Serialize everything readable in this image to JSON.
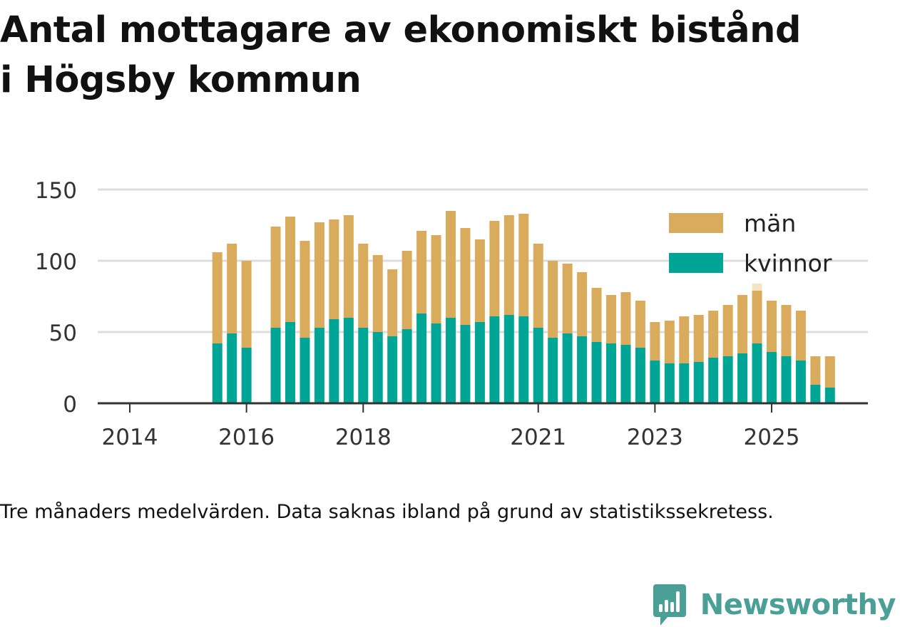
{
  "title_lines": [
    "Antal mottagare av ekonomiskt bistånd",
    "i Högsby kommun"
  ],
  "caption": "Tre månaders medelvärden. Data saknas ibland på grund av statistikssekretess.",
  "brand": "Newsworthy",
  "colors": {
    "men": "#d9ab5c",
    "women": "#00a595",
    "grid": "#dddddd",
    "axis": "#333333",
    "highlight": "#f3e5c4"
  },
  "chart_data": {
    "type": "bar",
    "stacked": true,
    "title": "Antal mottagare av ekonomiskt bistånd i Högsby kommun",
    "ylim": [
      0,
      150
    ],
    "yticks": [
      0,
      50,
      100,
      150
    ],
    "xlim": [
      2013.45,
      2026.65
    ],
    "xticks": [
      2014,
      2016,
      2018,
      2021,
      2023,
      2025
    ],
    "legend": {
      "position": "top-right",
      "entries": [
        "män",
        "kvinnor"
      ]
    },
    "x": [
      2015.5,
      2015.75,
      2016.0,
      2016.5,
      2016.75,
      2017.0,
      2017.25,
      2017.5,
      2017.75,
      2018.0,
      2018.25,
      2018.5,
      2018.75,
      2019.0,
      2019.25,
      2019.5,
      2019.75,
      2020.0,
      2020.25,
      2020.5,
      2020.75,
      2021.0,
      2021.25,
      2021.5,
      2021.75,
      2022.0,
      2022.25,
      2022.5,
      2022.75,
      2023.0,
      2023.25,
      2023.5,
      2023.75,
      2024.0,
      2024.25,
      2024.5,
      2024.75,
      2025.0,
      2025.25,
      2025.5,
      2025.75,
      2026.0
    ],
    "series": [
      {
        "name": "kvinnor",
        "values": [
          42,
          49,
          39,
          53,
          57,
          46,
          53,
          59,
          60,
          53,
          50,
          47,
          52,
          63,
          56,
          60,
          55,
          57,
          61,
          62,
          61,
          53,
          46,
          49,
          47,
          43,
          42,
          41,
          39,
          30,
          28,
          28,
          29,
          32,
          33,
          35,
          42,
          36,
          33,
          30,
          13,
          11
        ]
      },
      {
        "name": "män",
        "values": [
          64,
          63,
          61,
          71,
          74,
          68,
          74,
          70,
          72,
          59,
          54,
          47,
          55,
          58,
          62,
          75,
          68,
          58,
          67,
          70,
          72,
          59,
          54,
          49,
          45,
          38,
          34,
          37,
          33,
          27,
          30,
          33,
          33,
          33,
          36,
          41,
          37,
          36,
          36,
          35,
          20,
          22
        ]
      }
    ],
    "highlight_value": 84
  }
}
